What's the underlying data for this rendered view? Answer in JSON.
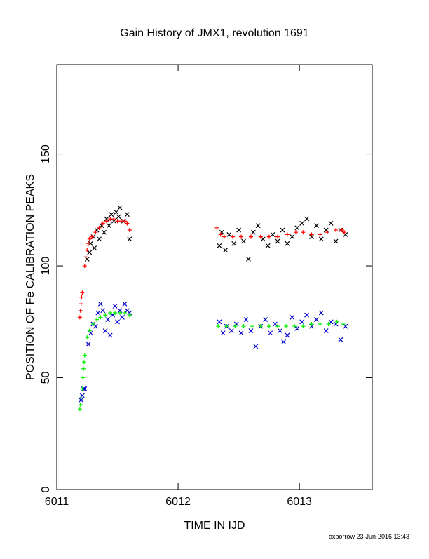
{
  "chart_data": {
    "type": "scatter",
    "title": "Gain History of JMX1, revolution 1691",
    "x_label": "TIME IN IJD",
    "y_label": "POSITION OF Fe CALIBRATION PEAKS",
    "footer": "oxborrow 23-Jun-2016 13:43",
    "xlim": [
      6011,
      6013.6
    ],
    "xticks": [
      6011,
      6012,
      6013
    ],
    "ylim": [
      0,
      190
    ],
    "yticks": [
      0,
      50,
      100,
      150
    ],
    "series": [
      {
        "color": "#000000",
        "marker": "x",
        "x": [
          6011.25,
          6011.27,
          6011.28,
          6011.3,
          6011.31,
          6011.33,
          6011.35,
          6011.37,
          6011.39,
          6011.41,
          6011.43,
          6011.45,
          6011.47,
          6011.49,
          6011.51,
          6011.52,
          6011.55,
          6011.58,
          6011.6,
          6012.34,
          6012.36,
          6012.39,
          6012.42,
          6012.46,
          6012.5,
          6012.54,
          6012.58,
          6012.62,
          6012.66,
          6012.7,
          6012.74,
          6012.78,
          6012.82,
          6012.86,
          6012.9,
          6012.94,
          6012.98,
          6013.02,
          6013.06,
          6013.1,
          6013.14,
          6013.18,
          6013.22,
          6013.26,
          6013.3,
          6013.34,
          6013.38
        ],
        "values": [
          103,
          106,
          110,
          113,
          108,
          116,
          112,
          118,
          115,
          121,
          118,
          123,
          120,
          124,
          122,
          126,
          120,
          123,
          112,
          109,
          115,
          107,
          114,
          110,
          116,
          111,
          103,
          115,
          118,
          112,
          109,
          114,
          111,
          116,
          110,
          113,
          117,
          119,
          121,
          113,
          118,
          112,
          116,
          119,
          111,
          116,
          114
        ]
      },
      {
        "color": "#ff0000",
        "marker": "+",
        "x": [
          6011.19,
          6011.195,
          6011.2,
          6011.205,
          6011.21,
          6011.23,
          6011.24,
          6011.25,
          6011.26,
          6011.27,
          6011.29,
          6011.32,
          6011.35,
          6011.38,
          6011.41,
          6011.44,
          6011.47,
          6011.5,
          6011.53,
          6011.56,
          6011.58,
          6011.6,
          6012.32,
          6012.35,
          6012.38,
          6012.45,
          6012.52,
          6012.6,
          6012.68,
          6012.75,
          6012.82,
          6012.9,
          6012.97,
          6013.03,
          6013.1,
          6013.17,
          6013.23,
          6013.3,
          6013.35,
          6013.37
        ],
        "values": [
          77,
          80,
          83,
          86,
          88,
          100,
          104,
          107,
          110,
          112,
          113,
          115,
          117,
          119,
          120,
          121,
          121,
          120,
          120,
          120,
          119,
          116,
          117,
          114,
          113,
          113,
          113,
          113,
          113,
          113,
          113,
          114,
          115,
          115,
          114,
          114,
          115,
          116,
          116,
          115
        ]
      },
      {
        "color": "#0000cc",
        "marker": "x",
        "x": [
          6011.2,
          6011.21,
          6011.22,
          6011.23,
          6011.26,
          6011.28,
          6011.3,
          6011.32,
          6011.34,
          6011.36,
          6011.38,
          6011.4,
          6011.42,
          6011.44,
          6011.46,
          6011.48,
          6011.5,
          6011.52,
          6011.54,
          6011.56,
          6011.58,
          6011.6,
          6012.34,
          6012.37,
          6012.4,
          6012.44,
          6012.48,
          6012.52,
          6012.56,
          6012.6,
          6012.64,
          6012.68,
          6012.72,
          6012.76,
          6012.8,
          6012.84,
          6012.87,
          6012.9,
          6012.94,
          6012.98,
          6013.02,
          6013.06,
          6013.1,
          6013.14,
          6013.18,
          6013.22,
          6013.26,
          6013.3,
          6013.34,
          6013.38
        ],
        "values": [
          40,
          42,
          45,
          45,
          65,
          70,
          74,
          73,
          79,
          83,
          80,
          71,
          76,
          69,
          78,
          82,
          75,
          80,
          77,
          83,
          80,
          79,
          75,
          70,
          73,
          71,
          74,
          70,
          76,
          71,
          64,
          73,
          76,
          70,
          74,
          71,
          66,
          69,
          77,
          72,
          75,
          78,
          73,
          76,
          79,
          71,
          75,
          74,
          67,
          73
        ]
      },
      {
        "color": "#00ee00",
        "marker": "+",
        "x": [
          6011.19,
          6011.195,
          6011.2,
          6011.21,
          6011.215,
          6011.22,
          6011.225,
          6011.23,
          6011.25,
          6011.27,
          6011.3,
          6011.33,
          6011.36,
          6011.4,
          6011.44,
          6011.48,
          6011.52,
          6011.56,
          6011.6,
          6012.33,
          6012.4,
          6012.47,
          6012.54,
          6012.61,
          6012.68,
          6012.75,
          6012.82,
          6012.89,
          6012.96,
          6013.03,
          6013.1,
          6013.17,
          6013.24,
          6013.31,
          6013.36
        ],
        "values": [
          36,
          38,
          41,
          45,
          50,
          54,
          57,
          60,
          68,
          71,
          74,
          76,
          77,
          78,
          79,
          79,
          79,
          79,
          78,
          73,
          73,
          73,
          73,
          73,
          73,
          73,
          73,
          73,
          73,
          73,
          74,
          74,
          74,
          75,
          74
        ]
      }
    ]
  }
}
